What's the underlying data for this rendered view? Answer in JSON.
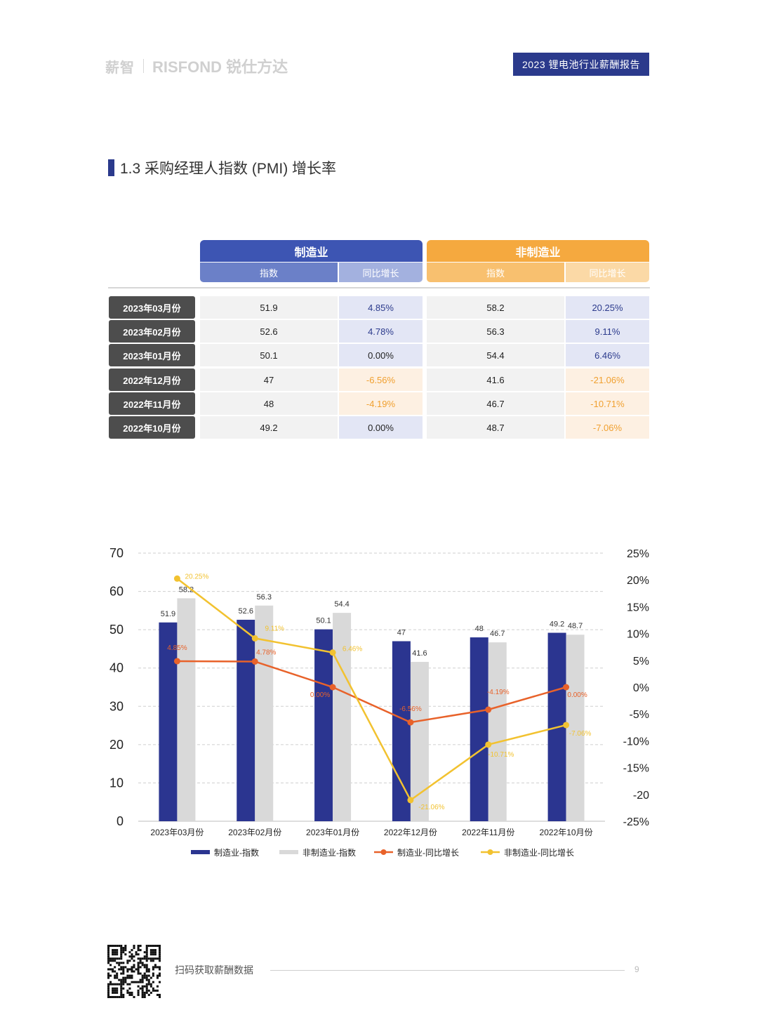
{
  "header": {
    "logo_a": "薪智",
    "logo_b": "RISFOND 锐仕方达",
    "report_title": "2023 锂电池行业薪酬报告"
  },
  "section": {
    "title": "1.3 采购经理人指数 (PMI) 增长率"
  },
  "table": {
    "groups": [
      {
        "label": "制造业",
        "color": "#3d55b3"
      },
      {
        "label": "非制造业",
        "color": "#f5a93f"
      }
    ],
    "sub_headers": [
      "指数",
      "同比增长",
      "指数",
      "同比增长"
    ],
    "rows": [
      {
        "label": "2023年03月份",
        "m_index": "51.9",
        "m_yoy": "4.85%",
        "n_index": "58.2",
        "n_yoy": "20.25%"
      },
      {
        "label": "2023年02月份",
        "m_index": "52.6",
        "m_yoy": "4.78%",
        "n_index": "56.3",
        "n_yoy": "9.11%"
      },
      {
        "label": "2023年01月份",
        "m_index": "50.1",
        "m_yoy": "0.00%",
        "n_index": "54.4",
        "n_yoy": "6.46%"
      },
      {
        "label": "2022年12月份",
        "m_index": "47",
        "m_yoy": "-6.56%",
        "n_index": "41.6",
        "n_yoy": "-21.06%"
      },
      {
        "label": "2022年11月份",
        "m_index": "48",
        "m_yoy": "-4.19%",
        "n_index": "46.7",
        "n_yoy": "-10.71%"
      },
      {
        "label": "2022年10月份",
        "m_index": "49.2",
        "m_yoy": "0.00%",
        "n_index": "48.7",
        "n_yoy": "-7.06%"
      }
    ]
  },
  "chart_data": {
    "type": "bar",
    "categories": [
      "2023年03月份",
      "2023年02月份",
      "2023年01月份",
      "2022年12月份",
      "2022年11月份",
      "2022年10月份"
    ],
    "ylim": [
      0,
      70
    ],
    "yticks": [
      0,
      10,
      20,
      30,
      40,
      50,
      60,
      70
    ],
    "y2lim": [
      -25,
      25
    ],
    "y2ticks": [
      "-25%",
      "-20",
      "-15%",
      "-10%",
      "-5%",
      "0%",
      "5%",
      "10%",
      "15%",
      "20%",
      "25%"
    ],
    "grid": true,
    "legend_position": "bottom",
    "series": [
      {
        "name": "制造业-指数",
        "type": "bar",
        "axis": "left",
        "color": "#2b3590",
        "values": [
          51.9,
          52.6,
          50.1,
          47,
          48,
          49.2
        ],
        "labels": [
          "51.9",
          "52.6",
          "50.1",
          "47",
          "48",
          "49.2"
        ]
      },
      {
        "name": "非制造业-指数",
        "type": "bar",
        "axis": "left",
        "color": "#d9d9d9",
        "values": [
          58.2,
          56.3,
          54.4,
          41.6,
          46.7,
          48.7
        ],
        "labels": [
          "58.2",
          "56.3",
          "54.4",
          "41.6",
          "46.7",
          "48.7"
        ]
      },
      {
        "name": "制造业-同比增长",
        "type": "line",
        "axis": "right",
        "color": "#e8622a",
        "values": [
          4.85,
          4.78,
          0.0,
          -6.56,
          -4.19,
          0.0
        ],
        "labels": [
          "4.85%",
          "4.78%",
          "0.00%",
          "-6.56%",
          "-4.19%",
          "0.00%"
        ]
      },
      {
        "name": "非制造业-同比增长",
        "type": "line",
        "axis": "right",
        "color": "#f2c230",
        "values": [
          20.25,
          9.11,
          6.46,
          -21.06,
          -10.71,
          -7.06
        ],
        "labels": [
          "20.25%",
          "9.11%",
          "6.46%",
          "-21.06%",
          "-10.71%",
          "-7.06%"
        ]
      }
    ]
  },
  "footer": {
    "text": "扫码获取薪酬数据",
    "page": "9"
  }
}
